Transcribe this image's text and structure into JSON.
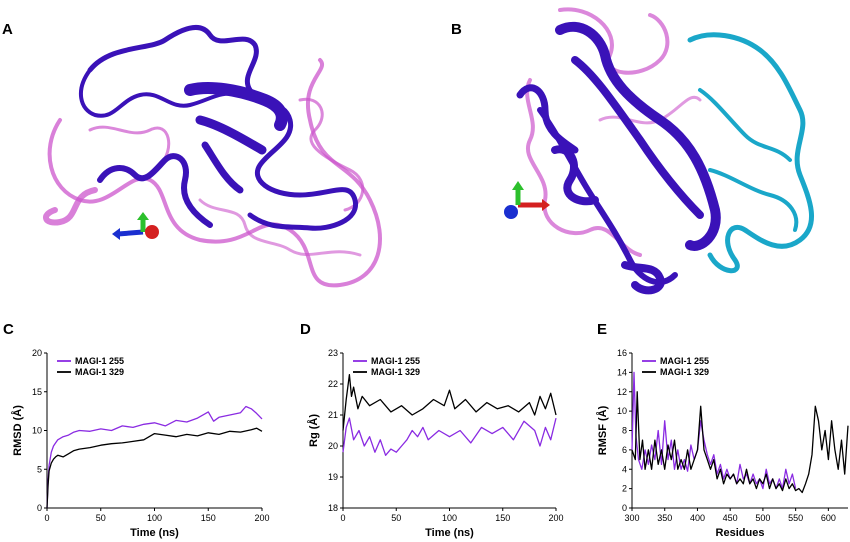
{
  "panels": {
    "A": "A",
    "B": "B",
    "C": "C",
    "D": "D",
    "E": "E"
  },
  "colors": {
    "series_255": "#8a2be2",
    "series_329": "#000000",
    "protein_main": "#3a12b8",
    "protein_loops": "#cc55cc",
    "protein_extra": "#1aa7c9"
  },
  "chart_data": [
    {
      "panel": "C",
      "type": "line",
      "xlabel": "Time (ns)",
      "ylabel": "RMSD (Å)",
      "xlim": [
        0,
        200
      ],
      "ylim": [
        0,
        20
      ],
      "xticks": [
        0,
        50,
        100,
        150,
        200
      ],
      "yticks": [
        0,
        5,
        10,
        15,
        20
      ],
      "legend_position": "top-left",
      "series": [
        {
          "name": "MAGI-1 255",
          "color": "#8a2be2",
          "x": [
            0,
            1,
            2,
            4,
            6,
            8,
            10,
            15,
            20,
            25,
            30,
            40,
            50,
            60,
            70,
            80,
            90,
            100,
            110,
            120,
            130,
            140,
            150,
            155,
            160,
            170,
            180,
            185,
            190,
            195,
            200
          ],
          "y": [
            0,
            3.5,
            5.5,
            7.2,
            8.0,
            8.4,
            8.8,
            9.2,
            9.4,
            9.8,
            10.0,
            9.9,
            10.2,
            10.0,
            10.6,
            10.4,
            10.8,
            11.0,
            10.6,
            11.3,
            11.1,
            11.6,
            12.4,
            11.2,
            11.7,
            12.0,
            12.3,
            13.1,
            12.8,
            12.2,
            11.5
          ]
        },
        {
          "name": "MAGI-1 329",
          "color": "#000000",
          "x": [
            0,
            1,
            2,
            4,
            6,
            8,
            10,
            15,
            20,
            25,
            30,
            40,
            50,
            60,
            70,
            80,
            90,
            100,
            110,
            120,
            130,
            140,
            150,
            160,
            170,
            180,
            190,
            195,
            200
          ],
          "y": [
            0,
            3.0,
            4.8,
            5.8,
            6.3,
            6.6,
            6.8,
            6.6,
            7.0,
            7.4,
            7.6,
            7.8,
            8.1,
            8.3,
            8.4,
            8.6,
            8.8,
            9.6,
            9.4,
            9.2,
            9.5,
            9.3,
            9.7,
            9.5,
            9.9,
            9.8,
            10.1,
            10.3,
            9.9
          ]
        }
      ]
    },
    {
      "panel": "D",
      "type": "line",
      "xlabel": "Time (ns)",
      "ylabel": "Rg  (Å)",
      "xlim": [
        0,
        200
      ],
      "ylim": [
        18,
        23
      ],
      "xticks": [
        0,
        50,
        100,
        150,
        200
      ],
      "yticks": [
        18,
        19,
        20,
        21,
        22,
        23
      ],
      "legend_position": "top-left",
      "series": [
        {
          "name": "MAGI-1 255",
          "color": "#8a2be2",
          "x": [
            0,
            3,
            6,
            10,
            15,
            20,
            25,
            30,
            35,
            40,
            45,
            50,
            55,
            60,
            65,
            70,
            75,
            80,
            90,
            100,
            110,
            120,
            130,
            140,
            150,
            160,
            170,
            180,
            185,
            190,
            195,
            200
          ],
          "y": [
            19.8,
            20.6,
            20.9,
            20.2,
            20.5,
            20.0,
            20.3,
            19.8,
            20.2,
            19.7,
            19.9,
            19.8,
            20.0,
            20.2,
            20.5,
            20.3,
            20.6,
            20.2,
            20.5,
            20.3,
            20.5,
            20.1,
            20.6,
            20.4,
            20.6,
            20.2,
            20.8,
            20.5,
            20.0,
            20.6,
            20.2,
            20.9
          ]
        },
        {
          "name": "MAGI-1 329",
          "color": "#000000",
          "x": [
            0,
            3,
            6,
            8,
            10,
            14,
            18,
            25,
            35,
            45,
            55,
            65,
            75,
            85,
            95,
            100,
            105,
            115,
            125,
            135,
            145,
            155,
            165,
            175,
            180,
            185,
            190,
            195,
            200
          ],
          "y": [
            20.5,
            21.5,
            22.3,
            21.6,
            21.9,
            21.2,
            21.6,
            21.3,
            21.5,
            21.1,
            21.3,
            21.0,
            21.2,
            21.5,
            21.3,
            21.8,
            21.2,
            21.5,
            21.1,
            21.4,
            21.2,
            21.3,
            21.1,
            21.4,
            21.0,
            21.6,
            21.2,
            21.7,
            21.0
          ]
        }
      ]
    },
    {
      "panel": "E",
      "type": "line",
      "xlabel": "Residues",
      "ylabel": "RMSF (Å)",
      "xlim": [
        300,
        630
      ],
      "ylim": [
        0,
        16
      ],
      "xticks": [
        300,
        350,
        400,
        450,
        500,
        550,
        600
      ],
      "yticks": [
        0,
        2,
        4,
        6,
        8,
        10,
        12,
        14,
        16
      ],
      "legend_position": "top-left",
      "series": [
        {
          "name": "MAGI-1 255",
          "color": "#8a2be2",
          "x": [
            300,
            303,
            306,
            310,
            315,
            320,
            325,
            330,
            335,
            340,
            345,
            350,
            355,
            360,
            365,
            370,
            375,
            380,
            385,
            390,
            395,
            400,
            405,
            410,
            415,
            420,
            425,
            430,
            435,
            440,
            445,
            450,
            455,
            460,
            465,
            470,
            475,
            480,
            485,
            490,
            495,
            500,
            505,
            510,
            515,
            520,
            525,
            530,
            535,
            540,
            545,
            550
          ],
          "y": [
            6.0,
            14.0,
            7.5,
            5.0,
            4.0,
            6.0,
            4.5,
            6.5,
            5.0,
            8.0,
            4.5,
            9.0,
            5.0,
            7.0,
            4.0,
            6.0,
            4.0,
            5.0,
            3.8,
            6.5,
            5.0,
            6.0,
            9.0,
            7.0,
            5.5,
            4.5,
            5.5,
            3.5,
            4.5,
            3.0,
            4.0,
            3.0,
            3.5,
            2.5,
            4.5,
            3.0,
            3.5,
            2.5,
            3.5,
            2.5,
            3.0,
            2.0,
            4.0,
            2.5,
            3.0,
            2.0,
            3.0,
            2.0,
            4.0,
            2.5,
            3.5,
            2.0
          ]
        },
        {
          "name": "MAGI-1 329",
          "color": "#000000",
          "x": [
            300,
            305,
            308,
            312,
            316,
            320,
            325,
            330,
            335,
            340,
            345,
            350,
            355,
            360,
            365,
            370,
            375,
            380,
            385,
            390,
            395,
            400,
            405,
            410,
            415,
            420,
            425,
            430,
            435,
            440,
            445,
            450,
            455,
            460,
            465,
            470,
            475,
            480,
            485,
            490,
            495,
            500,
            505,
            510,
            515,
            520,
            525,
            530,
            535,
            540,
            545,
            550,
            555,
            560,
            565,
            570,
            575,
            580,
            585,
            590,
            595,
            600,
            605,
            610,
            615,
            620,
            625,
            630
          ],
          "y": [
            6.0,
            5.0,
            12.0,
            5.0,
            7.0,
            4.0,
            6.0,
            4.0,
            7.0,
            4.5,
            6.0,
            4.0,
            6.5,
            5.0,
            7.0,
            4.0,
            5.0,
            4.0,
            6.0,
            4.0,
            5.0,
            6.0,
            10.5,
            6.0,
            5.0,
            4.0,
            5.0,
            3.0,
            4.0,
            2.5,
            3.5,
            3.0,
            3.5,
            2.5,
            3.0,
            2.5,
            4.0,
            2.5,
            3.0,
            2.0,
            3.0,
            2.5,
            3.5,
            2.0,
            3.0,
            2.0,
            2.5,
            1.8,
            3.0,
            2.0,
            2.5,
            1.8,
            2.0,
            1.6,
            2.5,
            3.5,
            5.5,
            10.5,
            9.0,
            6.0,
            8.0,
            5.0,
            9.0,
            6.0,
            4.0,
            7.0,
            3.5,
            8.5
          ]
        }
      ]
    }
  ]
}
